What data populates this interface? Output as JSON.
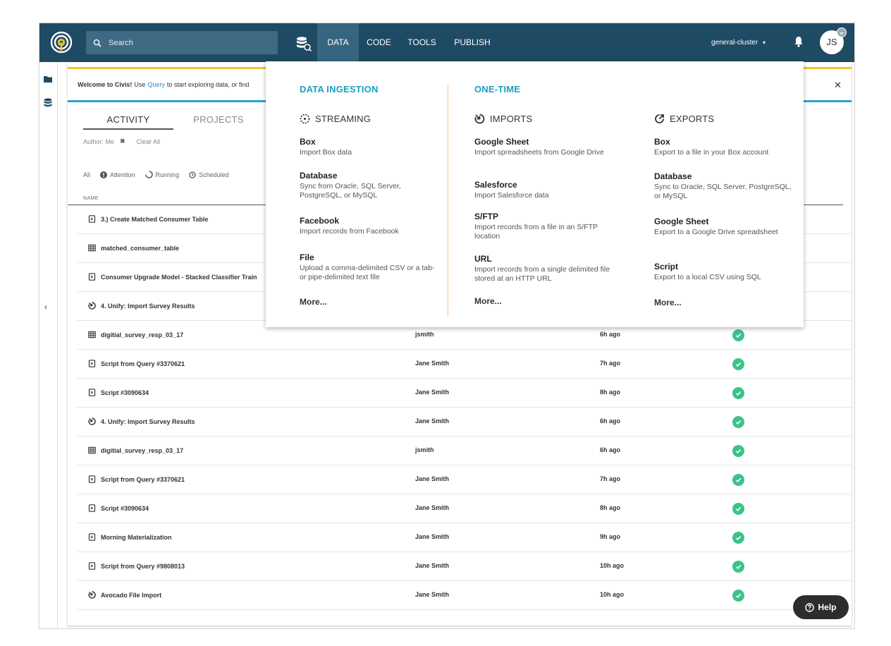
{
  "search": {
    "placeholder": "Search"
  },
  "nav": {
    "tabs": [
      {
        "label": "DATA",
        "active": true
      },
      {
        "label": "CODE"
      },
      {
        "label": "TOOLS"
      },
      {
        "label": "PUBLISH"
      }
    ],
    "cluster": "general-cluster",
    "user_initials": "JS"
  },
  "welcome": {
    "bold": "Welcome to Civis!",
    "prefix": "Use",
    "link": "Query",
    "suffix": "to start exploring data, or find"
  },
  "activity": {
    "tabs": [
      "ACTIVITY",
      "PROJECTS"
    ],
    "filter_author": "Author: Me",
    "clear_all": "Clear All",
    "status_filters": [
      "All",
      "Attention",
      "Running",
      "Scheduled"
    ],
    "name_header": "NAME",
    "rows": [
      {
        "icon": "script",
        "name": "3.) Create Matched Consumer Table",
        "author": "",
        "time": "",
        "status": "success"
      },
      {
        "icon": "table",
        "name": "matched_consumer_table",
        "author": "",
        "time": "",
        "status": "success"
      },
      {
        "icon": "script",
        "name": "Consumer Upgrade Model - Stacked Classifier Train",
        "author": "",
        "time": "",
        "status": "success"
      },
      {
        "icon": "import",
        "name": "4. Unify: Import Survey Results",
        "author": "",
        "time": "",
        "status": "success"
      },
      {
        "icon": "table",
        "name": "digitial_survey_resp_03_17",
        "author": "jsmith",
        "time": "6h ago",
        "status": "success"
      },
      {
        "icon": "script",
        "name": "Script from Query #3370621",
        "author": "Jane Smith",
        "time": "7h ago",
        "status": "success"
      },
      {
        "icon": "script",
        "name": "Script #3090634",
        "author": "Jane Smith",
        "time": "8h ago",
        "status": "success"
      },
      {
        "icon": "import",
        "name": "4. Unify: Import Survey Results",
        "author": "Jane Smith",
        "time": "6h ago",
        "status": "success"
      },
      {
        "icon": "table",
        "name": "digitial_survey_resp_03_17",
        "author": "jsmith",
        "time": "6h ago",
        "status": "success"
      },
      {
        "icon": "script",
        "name": "Script from Query #3370621",
        "author": "Jane Smith",
        "time": "7h ago",
        "status": "success"
      },
      {
        "icon": "script",
        "name": "Script #3090634",
        "author": "Jane Smith",
        "time": "8h ago",
        "status": "success"
      },
      {
        "icon": "script",
        "name": "Morning Materialization",
        "author": "Jane Smith",
        "time": "9h ago",
        "status": "success"
      },
      {
        "icon": "script",
        "name": "Script from Query #9808013",
        "author": "Jane Smith",
        "time": "10h ago",
        "status": "success"
      },
      {
        "icon": "import",
        "name": "Avocado File Import",
        "author": "Jane Smith",
        "time": "10h ago",
        "status": "success"
      }
    ]
  },
  "mega": {
    "ingestion_title": "DATA INGESTION",
    "onetime_title": "ONE-TIME",
    "streaming": {
      "title": "STREAMING",
      "items": [
        {
          "title": "Box",
          "desc": "Import Box data"
        },
        {
          "title": "Database",
          "desc": "Sync from Oracle, SQL Server, PostgreSQL, or MySQL"
        },
        {
          "title": "Facebook",
          "desc": "Import records from Facebook"
        },
        {
          "title": "File",
          "desc": "Upload a comma-delimited CSV or a tab- or pipe-delimited text file"
        }
      ],
      "more": "More..."
    },
    "imports": {
      "title": "IMPORTS",
      "items": [
        {
          "title": "Google Sheet",
          "desc": "Import spreadsheets from Google Drive"
        },
        {
          "title": "Salesforce",
          "desc": "Import Salesforce data"
        },
        {
          "title": "S/FTP",
          "desc": "Import records from a file in an S/FTP location"
        },
        {
          "title": "URL",
          "desc": "Import records from a single delimited file stored at an HTTP URL"
        }
      ],
      "more": "More..."
    },
    "exports": {
      "title": "EXPORTS",
      "items": [
        {
          "title": "Box",
          "desc": "Export to a file in your Box account"
        },
        {
          "title": "Database",
          "desc": "Sync to Oracle, SQL Server, PostgreSQL, or MySQL"
        },
        {
          "title": "Google Sheet",
          "desc": "Export to a Google Drive spreadsheet"
        },
        {
          "title": "Script",
          "desc": "Export to a local CSV using SQL"
        }
      ],
      "more": "More..."
    }
  },
  "help": {
    "label": "Help"
  },
  "colors": {
    "nav_bg": "#1f4a63",
    "accent_teal": "#1c9ec0",
    "success": "#3bc38a",
    "welcome_top": "#f2c12e",
    "welcome_bottom": "#2a9fd8"
  }
}
